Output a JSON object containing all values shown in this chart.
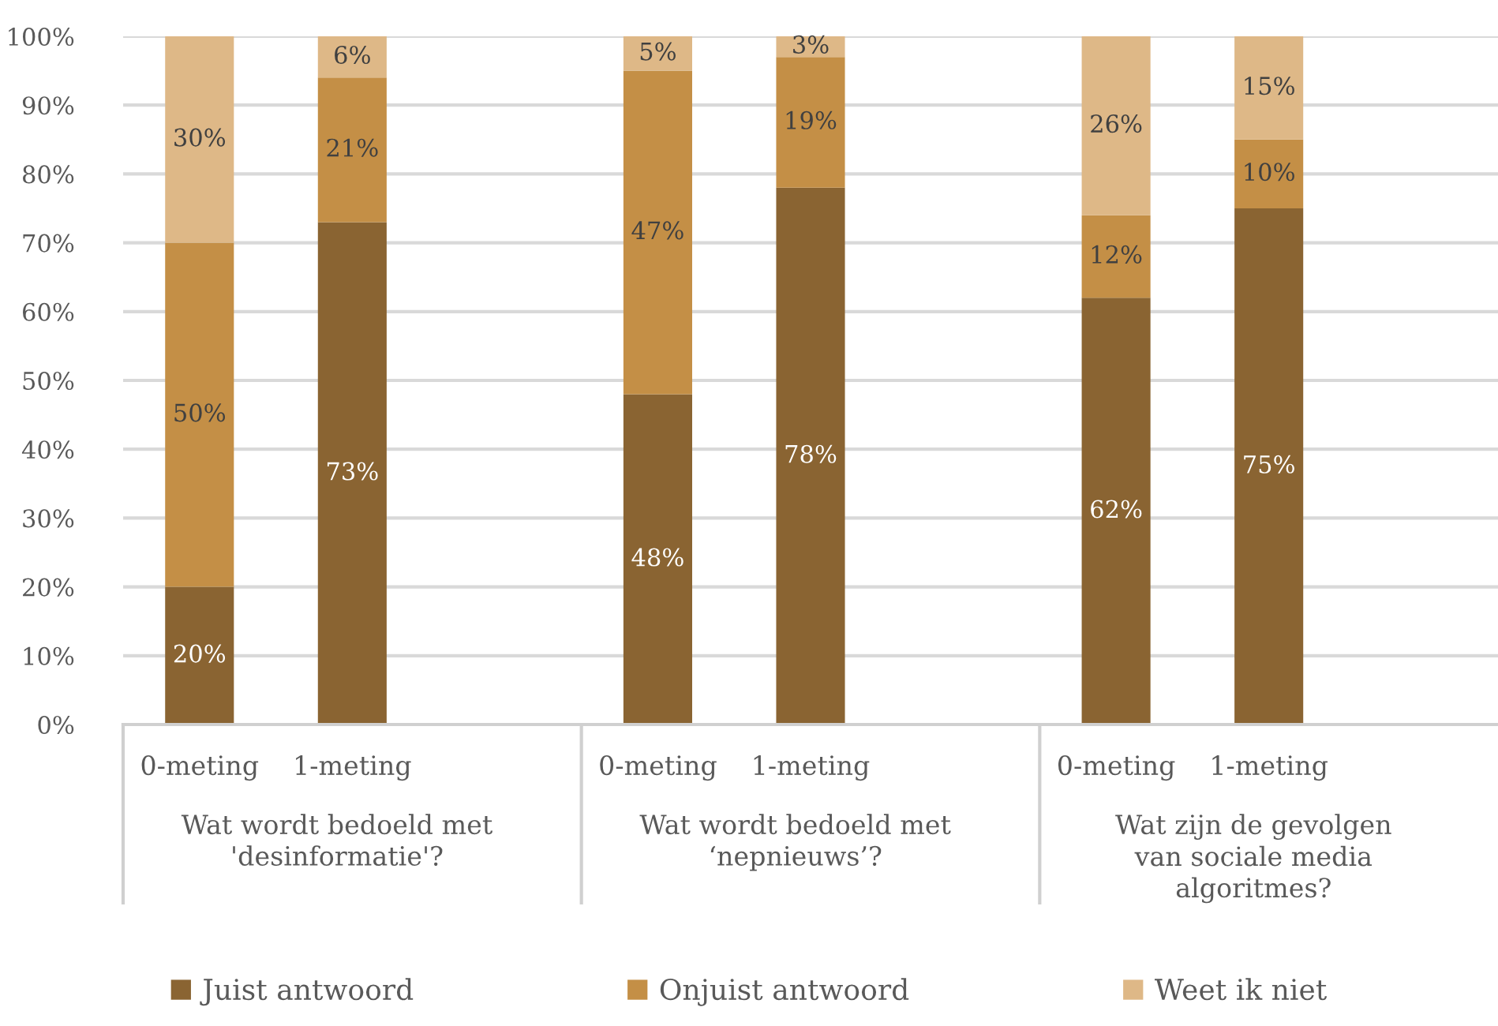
{
  "chart_data": {
    "type": "bar",
    "stacked": true,
    "categories": [
      "0-meting",
      "1-meting",
      null,
      "0-meting",
      "1-meting",
      null,
      "0-meting",
      "1-meting",
      null
    ],
    "series": [
      {
        "name": "Juist antwoord",
        "color": "#8a6432",
        "values": [
          20,
          73,
          null,
          48,
          78,
          null,
          62,
          75,
          null
        ],
        "value_labels": [
          "20%",
          "73%",
          null,
          "48%",
          "78%",
          null,
          "62%",
          "75%",
          null
        ]
      },
      {
        "name": "Onjuist antwoord",
        "color": "#c48f46",
        "values": [
          50,
          21,
          null,
          47,
          19,
          null,
          12,
          10,
          null
        ],
        "value_labels": [
          "50%",
          "21%",
          null,
          "47%",
          "19%",
          null,
          "12%",
          "10%",
          null
        ]
      },
      {
        "name": "Weet ik niet",
        "color": "#deb887",
        "values": [
          30,
          6,
          null,
          5,
          3,
          null,
          26,
          15,
          null
        ],
        "value_labels": [
          "30%",
          "6%",
          null,
          "5%",
          "3%",
          null,
          "26%",
          "15%",
          null
        ]
      }
    ],
    "ylim": [
      0,
      100
    ],
    "yticks": [
      {
        "value": 0,
        "label": "0%"
      },
      {
        "value": 10,
        "label": "10%"
      },
      {
        "value": 20,
        "label": "20%"
      },
      {
        "value": 30,
        "label": "30%"
      },
      {
        "value": 40,
        "label": "40%"
      },
      {
        "value": 50,
        "label": "50%"
      },
      {
        "value": 60,
        "label": "60%"
      },
      {
        "value": 70,
        "label": "70%"
      },
      {
        "value": 80,
        "label": "80%"
      },
      {
        "value": 90,
        "label": "90%"
      },
      {
        "value": 100,
        "label": "100%"
      }
    ],
    "grid": "y",
    "legend": "bottom",
    "annotations": [
      "Wat wordt bedoeld met\n'desinformatie'?",
      "Wat wordt bedoeld met\n‘nepnieuws’?",
      "Wat zijn de gevolgen\nvan sociale media\nalgoritmes?"
    ]
  }
}
